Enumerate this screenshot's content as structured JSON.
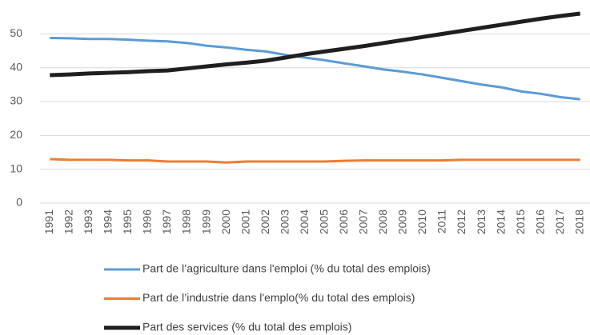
{
  "chart_data": {
    "type": "line",
    "categories": [
      "1991",
      "1992",
      "1993",
      "1994",
      "1995",
      "1996",
      "1997",
      "1998",
      "1999",
      "2000",
      "2001",
      "2002",
      "2003",
      "2004",
      "2005",
      "2006",
      "2007",
      "2008",
      "2009",
      "2010",
      "2011",
      "2012",
      "2013",
      "2014",
      "2015",
      "2016",
      "2017",
      "2018"
    ],
    "series": [
      {
        "name": "Part de l’agriculture dans l'emploi  (% du total des emplois)",
        "color": "#5b9bd5",
        "width": 3,
        "values": [
          48.8,
          48.7,
          48.5,
          48.5,
          48.3,
          48.0,
          47.8,
          47.3,
          46.5,
          46.0,
          45.3,
          44.8,
          43.8,
          43.0,
          42.2,
          41.3,
          40.4,
          39.5,
          38.8,
          38.0,
          37.0,
          36.0,
          35.0,
          34.2,
          33.0,
          32.3,
          31.3,
          30.7
        ]
      },
      {
        "name": "Part de l’industrie dans l'emplo(% du total des emplois)",
        "color": "#ed7d31",
        "width": 3,
        "values": [
          13.0,
          12.8,
          12.8,
          12.8,
          12.6,
          12.6,
          12.3,
          12.3,
          12.3,
          12.0,
          12.3,
          12.3,
          12.3,
          12.3,
          12.3,
          12.5,
          12.6,
          12.6,
          12.6,
          12.6,
          12.6,
          12.8,
          12.8,
          12.8,
          12.8,
          12.8,
          12.8,
          12.8
        ]
      },
      {
        "name": "Part des services (% du total des emplois)",
        "color": "#1f1f1f",
        "width": 5,
        "values": [
          37.8,
          38.0,
          38.3,
          38.5,
          38.7,
          39.0,
          39.2,
          39.8,
          40.4,
          41.0,
          41.5,
          42.1,
          43.0,
          44.0,
          44.8,
          45.6,
          46.4,
          47.3,
          48.2,
          49.1,
          50.0,
          50.9,
          51.8,
          52.7,
          53.6,
          54.5,
          55.3,
          56.0
        ]
      }
    ],
    "ylim": [
      0,
      56
    ],
    "yticks": [
      0,
      10,
      20,
      30,
      40,
      50
    ],
    "grid": true,
    "legend": "bottom"
  }
}
